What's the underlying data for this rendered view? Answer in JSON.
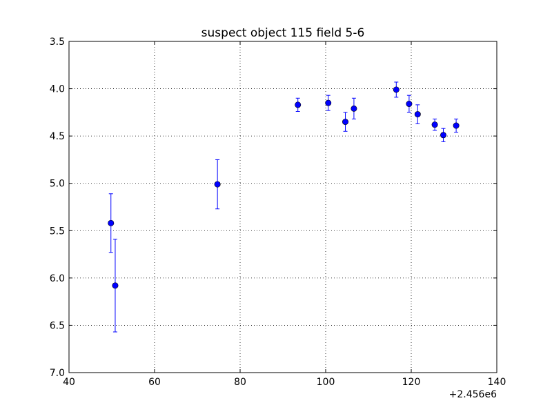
{
  "chart_data": {
    "type": "scatter",
    "title": "suspect object 115 field 5-6",
    "xlabel": "",
    "ylabel": "",
    "x_offset_label": "+2.456e6",
    "xlim": [
      40,
      140
    ],
    "ylim": [
      3.5,
      7.0
    ],
    "y_inverted": true,
    "grid": true,
    "x_ticks": [
      "40",
      "60",
      "80",
      "100",
      "120",
      "140"
    ],
    "y_ticks": [
      "3.5",
      "4.0",
      "4.5",
      "5.0",
      "5.5",
      "6.0",
      "6.5",
      "7.0"
    ],
    "series": [
      {
        "color": "#0000ff",
        "marker": "circle",
        "points": [
          {
            "x": 49.8,
            "y": 5.42,
            "err": 0.31
          },
          {
            "x": 50.8,
            "y": 6.08,
            "err": 0.49
          },
          {
            "x": 74.7,
            "y": 5.01,
            "err": 0.26
          },
          {
            "x": 93.5,
            "y": 4.17,
            "err": 0.07
          },
          {
            "x": 100.6,
            "y": 4.15,
            "err": 0.08
          },
          {
            "x": 104.6,
            "y": 4.35,
            "err": 0.1
          },
          {
            "x": 106.6,
            "y": 4.21,
            "err": 0.11
          },
          {
            "x": 116.5,
            "y": 4.01,
            "err": 0.08
          },
          {
            "x": 119.5,
            "y": 4.16,
            "err": 0.09
          },
          {
            "x": 121.5,
            "y": 4.27,
            "err": 0.1
          },
          {
            "x": 125.5,
            "y": 4.38,
            "err": 0.06
          },
          {
            "x": 127.5,
            "y": 4.49,
            "err": 0.07
          },
          {
            "x": 130.5,
            "y": 4.39,
            "err": 0.07
          }
        ]
      }
    ]
  }
}
